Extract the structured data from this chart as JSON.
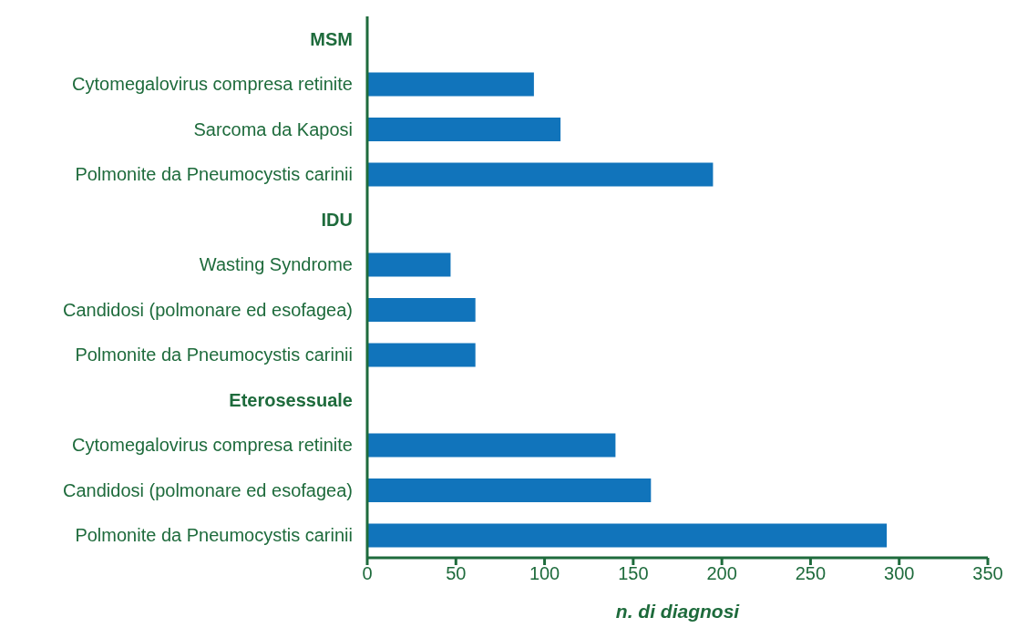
{
  "chart_data": {
    "type": "bar",
    "orientation": "horizontal",
    "xlabel": "n. di diagnosi",
    "categories": [
      "MSM",
      "Cytomegalovirus compresa retinite",
      "Sarcoma da Kaposi",
      "Polmonite da Pneumocystis carinii",
      "IDU",
      "Wasting Syndrome",
      "Candidosi (polmonare ed esofagea)",
      "Polmonite da Pneumocystis carinii",
      "Eterosessuale",
      "Cytomegalovirus compresa retinite",
      "Candidosi (polmonare ed esofagea)",
      "Polmonite da Pneumocystis carinii"
    ],
    "values": [
      null,
      94,
      109,
      195,
      null,
      47,
      61,
      61,
      null,
      140,
      160,
      293
    ],
    "color": "#1174bb",
    "xlim": [
      0,
      350
    ],
    "xticks": [
      0,
      50,
      100,
      150,
      200,
      250,
      300,
      350
    ]
  }
}
